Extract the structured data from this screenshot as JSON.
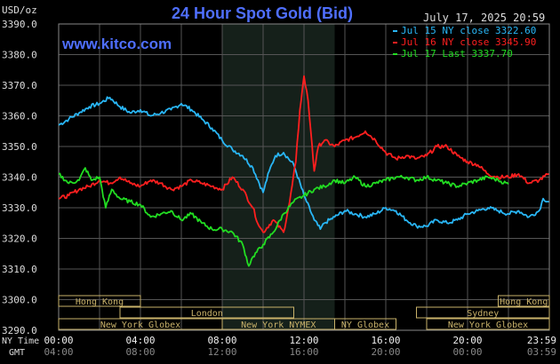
{
  "header": {
    "unit": "USD/oz",
    "title": "24 Hour Spot Gold (Bid)",
    "timestamp": "July 17, 2025 20:59",
    "site": "www.kitco.com"
  },
  "colors": {
    "background": "#000000",
    "grid": "#555555",
    "title": "#4f6fff",
    "jul15": "#29b6f6",
    "jul16": "#ff1f1f",
    "jul17": "#22dd22",
    "ny_session_shade": "#15201a",
    "market_box": "#c9b26a",
    "text": "#dddddd"
  },
  "chart_data": {
    "type": "line",
    "title": "24 Hour Spot Gold (Bid)",
    "ylabel": "USD/oz",
    "ylim": [
      3290,
      3390
    ],
    "y_ticks": [
      "3390.0",
      "3380.0",
      "3370.0",
      "3360.0",
      "3350.0",
      "3340.0",
      "3330.0",
      "3320.0",
      "3310.0",
      "3300.0",
      "3290.0"
    ],
    "xlim": [
      0,
      24
    ],
    "x_ticks_ny": [
      "00:00",
      "04:00",
      "08:00",
      "12:00",
      "16:00",
      "20:00",
      "23:59"
    ],
    "x_ticks_gmt": [
      "04:00",
      "08:00",
      "12:00",
      "16:00",
      "20:00",
      "00:00",
      "03:59"
    ],
    "x_row_labels": {
      "ny": "NY Time",
      "gmt": "GMT"
    },
    "grid": true,
    "legend_position": "top-right",
    "series": [
      {
        "name": "Jul 15 NY close 3322.60",
        "color_key": "jul15",
        "points": [
          [
            0,
            3357
          ],
          [
            0.5,
            3359
          ],
          [
            1,
            3361
          ],
          [
            1.5,
            3363
          ],
          [
            2,
            3364
          ],
          [
            2.5,
            3366
          ],
          [
            3,
            3363
          ],
          [
            3.5,
            3361
          ],
          [
            4,
            3362
          ],
          [
            4.5,
            3360
          ],
          [
            5,
            3361
          ],
          [
            5.5,
            3362
          ],
          [
            6,
            3364
          ],
          [
            6.5,
            3362
          ],
          [
            7,
            3359
          ],
          [
            7.5,
            3356
          ],
          [
            8,
            3352
          ],
          [
            8.5,
            3349
          ],
          [
            9,
            3347
          ],
          [
            9.5,
            3343
          ],
          [
            10,
            3335
          ],
          [
            10.3,
            3342
          ],
          [
            10.6,
            3347
          ],
          [
            11,
            3348
          ],
          [
            11.5,
            3344
          ],
          [
            12,
            3334
          ],
          [
            12.5,
            3326
          ],
          [
            12.8,
            3323
          ],
          [
            13,
            3325
          ],
          [
            13.5,
            3327
          ],
          [
            14,
            3329
          ],
          [
            14.5,
            3328
          ],
          [
            15,
            3327
          ],
          [
            15.5,
            3328
          ],
          [
            16,
            3330
          ],
          [
            16.5,
            3329
          ],
          [
            17,
            3326
          ],
          [
            17.5,
            3324
          ],
          [
            18,
            3324
          ],
          [
            18.5,
            3326
          ],
          [
            19,
            3325
          ],
          [
            19.5,
            3326
          ],
          [
            20,
            3328
          ],
          [
            20.5,
            3329
          ],
          [
            21,
            3330
          ],
          [
            21.5,
            3329
          ],
          [
            22,
            3328
          ],
          [
            22.5,
            3329
          ],
          [
            23,
            3327
          ],
          [
            23.5,
            3329
          ],
          [
            23.7,
            3333
          ],
          [
            23.98,
            3332
          ]
        ]
      },
      {
        "name": "Jul 16 NY close 3345.90",
        "color_key": "jul16",
        "points": [
          [
            0,
            3333
          ],
          [
            0.5,
            3334
          ],
          [
            1,
            3336
          ],
          [
            1.5,
            3337
          ],
          [
            2,
            3339
          ],
          [
            2.5,
            3338
          ],
          [
            3,
            3340
          ],
          [
            3.5,
            3338
          ],
          [
            4,
            3337
          ],
          [
            4.5,
            3339
          ],
          [
            5,
            3338
          ],
          [
            5.5,
            3336
          ],
          [
            6,
            3337
          ],
          [
            6.5,
            3339
          ],
          [
            7,
            3338
          ],
          [
            7.5,
            3337
          ],
          [
            8,
            3336
          ],
          [
            8.5,
            3340
          ],
          [
            9,
            3336
          ],
          [
            9.5,
            3330
          ],
          [
            9.8,
            3324
          ],
          [
            10,
            3322
          ],
          [
            10.5,
            3326
          ],
          [
            11,
            3322
          ],
          [
            11.3,
            3332
          ],
          [
            11.6,
            3345
          ],
          [
            11.8,
            3362
          ],
          [
            12,
            3373
          ],
          [
            12.2,
            3365
          ],
          [
            12.4,
            3350
          ],
          [
            12.5,
            3342
          ],
          [
            12.7,
            3350
          ],
          [
            13,
            3352
          ],
          [
            13.5,
            3350
          ],
          [
            14,
            3352
          ],
          [
            14.5,
            3353
          ],
          [
            15,
            3355
          ],
          [
            15.5,
            3352
          ],
          [
            16,
            3348
          ],
          [
            16.5,
            3346
          ],
          [
            17,
            3347
          ],
          [
            17.5,
            3346
          ],
          [
            18,
            3347
          ],
          [
            18.5,
            3350
          ],
          [
            19,
            3350
          ],
          [
            19.5,
            3347
          ],
          [
            20,
            3345
          ],
          [
            20.5,
            3344
          ],
          [
            21,
            3341
          ],
          [
            21.5,
            3340
          ],
          [
            22,
            3340
          ],
          [
            22.5,
            3341
          ],
          [
            23,
            3338
          ],
          [
            23.5,
            3339
          ],
          [
            23.98,
            3341
          ]
        ]
      },
      {
        "name": "Jul 17 Last 3337.70",
        "color_key": "jul17",
        "points": [
          [
            0,
            3341
          ],
          [
            0.5,
            3338
          ],
          [
            1,
            3339
          ],
          [
            1.3,
            3343
          ],
          [
            1.6,
            3339
          ],
          [
            2,
            3340
          ],
          [
            2.3,
            3330
          ],
          [
            2.6,
            3336
          ],
          [
            3,
            3333
          ],
          [
            3.5,
            3332
          ],
          [
            4,
            3331
          ],
          [
            4.5,
            3327
          ],
          [
            5,
            3328
          ],
          [
            5.5,
            3329
          ],
          [
            6,
            3326
          ],
          [
            6.5,
            3328
          ],
          [
            7,
            3325
          ],
          [
            7.5,
            3323
          ],
          [
            8,
            3323
          ],
          [
            8.5,
            3322
          ],
          [
            9,
            3318
          ],
          [
            9.3,
            3311
          ],
          [
            9.5,
            3314
          ],
          [
            10,
            3318
          ],
          [
            10.5,
            3322
          ],
          [
            11,
            3328
          ],
          [
            11.5,
            3332
          ],
          [
            12,
            3334
          ],
          [
            12.5,
            3336
          ],
          [
            13,
            3337
          ],
          [
            13.5,
            3339
          ],
          [
            14,
            3338
          ],
          [
            14.5,
            3340
          ],
          [
            15,
            3337
          ],
          [
            15.5,
            3338
          ],
          [
            16,
            3339
          ],
          [
            16.5,
            3340
          ],
          [
            17,
            3340
          ],
          [
            17.5,
            3339
          ],
          [
            18,
            3340
          ],
          [
            18.5,
            3339
          ],
          [
            19,
            3338
          ],
          [
            19.5,
            3337
          ],
          [
            20,
            3338
          ],
          [
            20.5,
            3339
          ],
          [
            21,
            3340
          ],
          [
            21.5,
            3339
          ],
          [
            22,
            3337.7
          ]
        ]
      }
    ],
    "ny_session_shade": [
      8,
      13.5
    ],
    "markets": [
      {
        "name": "Hong Kong",
        "row": 0,
        "start": 0,
        "end": 4
      },
      {
        "name": "Hong Kong",
        "row": 0,
        "start": 21.5,
        "end": 24
      },
      {
        "name": "London",
        "row": 1,
        "start": 3,
        "end": 11.5
      },
      {
        "name": "Sydney",
        "row": 1,
        "start": 17.5,
        "end": 24
      },
      {
        "name": "New York Globex",
        "row": 2,
        "start": 0,
        "end": 8
      },
      {
        "name": "New York NYMEX",
        "row": 2,
        "start": 8,
        "end": 13.5
      },
      {
        "name": "NY Globex",
        "row": 2,
        "start": 13.5,
        "end": 16.5
      },
      {
        "name": "New York Globex",
        "row": 2,
        "start": 18,
        "end": 24
      }
    ]
  }
}
